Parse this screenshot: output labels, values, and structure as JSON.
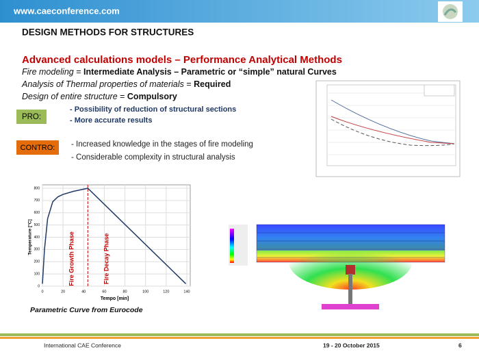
{
  "header": {
    "url": "www.caeconference.com"
  },
  "title": "DESIGN METHODS FOR STRUCTURES",
  "heading": "Advanced calculations models – Performance Analytical Methods",
  "lines": [
    [
      "Fire modeling",
      " = ",
      "Intermediate Analysis – Parametric or “simple” natural Curves"
    ],
    [
      "Analysis of Thermal properties of materials",
      " = ",
      "Required"
    ],
    [
      "Design of entire structure",
      " = ",
      "Compulsory"
    ]
  ],
  "pro": {
    "label": "PRO:",
    "items": [
      "- Possibility of reduction of structural sections",
      "- More accurate results"
    ]
  },
  "contro": {
    "label": "CONTRO:",
    "items": [
      "- Increased knowledge in the stages of fire modeling",
      "- Considerable complexity in structural analysis"
    ]
  },
  "parametric_chart": {
    "type": "line",
    "ylabel": "Temperature [°C]",
    "xlabel": "Tempo [min]",
    "x": [
      0,
      2,
      5,
      10,
      15,
      20,
      30,
      44,
      139
    ],
    "values": [
      20,
      300,
      550,
      690,
      730,
      750,
      775,
      800,
      20
    ],
    "color": "#1f3864",
    "xlim": [
      0,
      140
    ],
    "ylim": [
      0,
      800
    ],
    "xticks": [
      0,
      20,
      40,
      60,
      80,
      100,
      120,
      140
    ],
    "yticks": [
      0,
      100,
      200,
      300,
      400,
      500,
      600,
      700,
      800
    ],
    "grid": true,
    "phases": [
      "Fire Growth Phase",
      "Fire Decay Phase"
    ],
    "caption": "Parametric Curve from Eurocode"
  },
  "footer": {
    "left": "International CAE Conference",
    "date": "19 - 20 October 2015",
    "page": "6"
  }
}
